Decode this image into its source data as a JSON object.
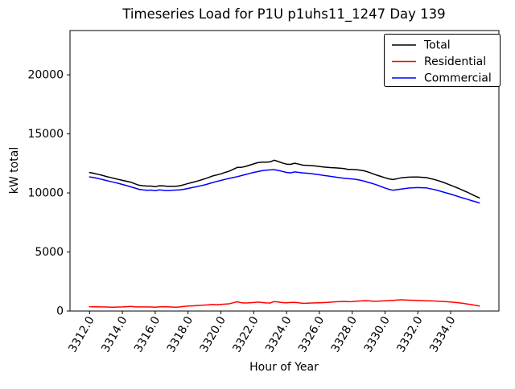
{
  "title": "Timeseries Load for P1U p1uhs11_1247  Day 139",
  "chart_data": {
    "type": "line",
    "title": "Timeseries Load for P1U p1uhs11_1247  Day 139",
    "xlabel": "Hour of Year",
    "ylabel": "kW total",
    "xlim": [
      3310.81,
      3336.94
    ],
    "ylim": [
      0,
      23750
    ],
    "grid": false,
    "legend_position": "upper right",
    "x_ticks": [
      3312.0,
      3314.0,
      3316.0,
      3318.0,
      3320.0,
      3322.0,
      3324.0,
      3326.0,
      3328.0,
      3330.0,
      3332.0,
      3334.0
    ],
    "x_tick_labels": [
      "3312.0",
      "3314.0",
      "3316.0",
      "3318.0",
      "3320.0",
      "3322.0",
      "3324.0",
      "3326.0",
      "3328.0",
      "3330.0",
      "3332.0",
      "3334.0"
    ],
    "y_ticks": [
      0,
      5000,
      10000,
      15000,
      20000
    ],
    "y_tick_labels": [
      "0",
      "5000",
      "10000",
      "15000",
      "20000"
    ],
    "x": [
      3312.0,
      3312.25,
      3312.5,
      3312.75,
      3313.0,
      3313.25,
      3313.5,
      3313.75,
      3314.0,
      3314.25,
      3314.5,
      3314.75,
      3315.0,
      3315.25,
      3315.5,
      3315.75,
      3316.0,
      3316.25,
      3316.5,
      3316.75,
      3317.0,
      3317.25,
      3317.5,
      3317.75,
      3318.0,
      3318.25,
      3318.5,
      3318.75,
      3319.0,
      3319.25,
      3319.5,
      3319.75,
      3320.0,
      3320.25,
      3320.5,
      3320.75,
      3321.0,
      3321.25,
      3321.5,
      3321.75,
      3322.0,
      3322.25,
      3322.5,
      3322.75,
      3323.0,
      3323.25,
      3323.5,
      3323.75,
      3324.0,
      3324.25,
      3324.5,
      3324.75,
      3325.0,
      3325.25,
      3325.5,
      3325.75,
      3326.0,
      3326.25,
      3326.5,
      3326.75,
      3327.0,
      3327.25,
      3327.5,
      3327.75,
      3328.0,
      3328.25,
      3328.5,
      3328.75,
      3329.0,
      3329.25,
      3329.5,
      3329.75,
      3330.0,
      3330.25,
      3330.5,
      3330.75,
      3331.0,
      3331.25,
      3331.5,
      3331.75,
      3332.0,
      3332.25,
      3332.5,
      3332.75,
      3333.0,
      3333.25,
      3333.5,
      3333.75,
      3334.0,
      3334.25,
      3334.5,
      3334.75,
      3335.0,
      3335.25,
      3335.5,
      3335.75
    ],
    "series": [
      {
        "name": "Total",
        "color": "#000000",
        "values": [
          11730,
          11662,
          11585,
          11498,
          11400,
          11315,
          11230,
          11148,
          11065,
          10990,
          10915,
          10780,
          10655,
          10608,
          10580,
          10580,
          10530,
          10608,
          10595,
          10552,
          10570,
          10570,
          10610,
          10695,
          10800,
          10888,
          10975,
          11080,
          11185,
          11312,
          11440,
          11520,
          11615,
          11732,
          11840,
          12000,
          12160,
          12170,
          12240,
          12350,
          12460,
          12565,
          12600,
          12610,
          12630,
          12770,
          12660,
          12535,
          12440,
          12420,
          12515,
          12440,
          12350,
          12330,
          12320,
          12280,
          12240,
          12202,
          12165,
          12142,
          12120,
          12090,
          12060,
          12000,
          11995,
          11968,
          11930,
          11870,
          11760,
          11630,
          11510,
          11398,
          11285,
          11185,
          11135,
          11210,
          11280,
          11315,
          11340,
          11350,
          11350,
          11325,
          11300,
          11220,
          11140,
          11035,
          10920,
          10790,
          10660,
          10520,
          10380,
          10220,
          10070,
          9910,
          9740,
          9580
        ]
      },
      {
        "name": "Residential",
        "color": "#ff0000",
        "values": [
          370,
          362,
          355,
          348,
          340,
          335,
          330,
          338,
          345,
          370,
          395,
          360,
          345,
          348,
          350,
          340,
          330,
          348,
          365,
          352,
          340,
          330,
          350,
          385,
          420,
          438,
          455,
          480,
          505,
          532,
          560,
          540,
          555,
          582,
          610,
          700,
          780,
          700,
          680,
          700,
          720,
          755,
          720,
          690,
          680,
          800,
          760,
          715,
          700,
          720,
          735,
          700,
          650,
          660,
          680,
          690,
          700,
          712,
          725,
          752,
          780,
          800,
          820,
          790,
          805,
          828,
          850,
          880,
          870,
          840,
          830,
          848,
          865,
          885,
          905,
          930,
          950,
          935,
          920,
          910,
          900,
          885,
          870,
          860,
          850,
          835,
          820,
          790,
          760,
          730,
          700,
          650,
          600,
          550,
          480,
          430
        ]
      },
      {
        "name": "Commercial",
        "color": "#0000ff",
        "values": [
          11360,
          11300,
          11230,
          11150,
          11060,
          10980,
          10900,
          10810,
          10720,
          10620,
          10520,
          10420,
          10310,
          10260,
          10230,
          10240,
          10200,
          10260,
          10230,
          10200,
          10230,
          10240,
          10260,
          10310,
          10380,
          10450,
          10520,
          10600,
          10680,
          10780,
          10880,
          10980,
          11060,
          11150,
          11230,
          11300,
          11380,
          11470,
          11560,
          11650,
          11740,
          11810,
          11880,
          11920,
          11950,
          11970,
          11900,
          11820,
          11740,
          11700,
          11780,
          11740,
          11700,
          11670,
          11640,
          11590,
          11540,
          11490,
          11440,
          11390,
          11340,
          11290,
          11240,
          11210,
          11190,
          11140,
          11080,
          10990,
          10890,
          10790,
          10680,
          10550,
          10420,
          10300,
          10230,
          10280,
          10330,
          10380,
          10420,
          10440,
          10450,
          10440,
          10430,
          10360,
          10290,
          10200,
          10100,
          10000,
          9900,
          9790,
          9680,
          9570,
          9470,
          9360,
          9260,
          9150
        ]
      }
    ]
  }
}
